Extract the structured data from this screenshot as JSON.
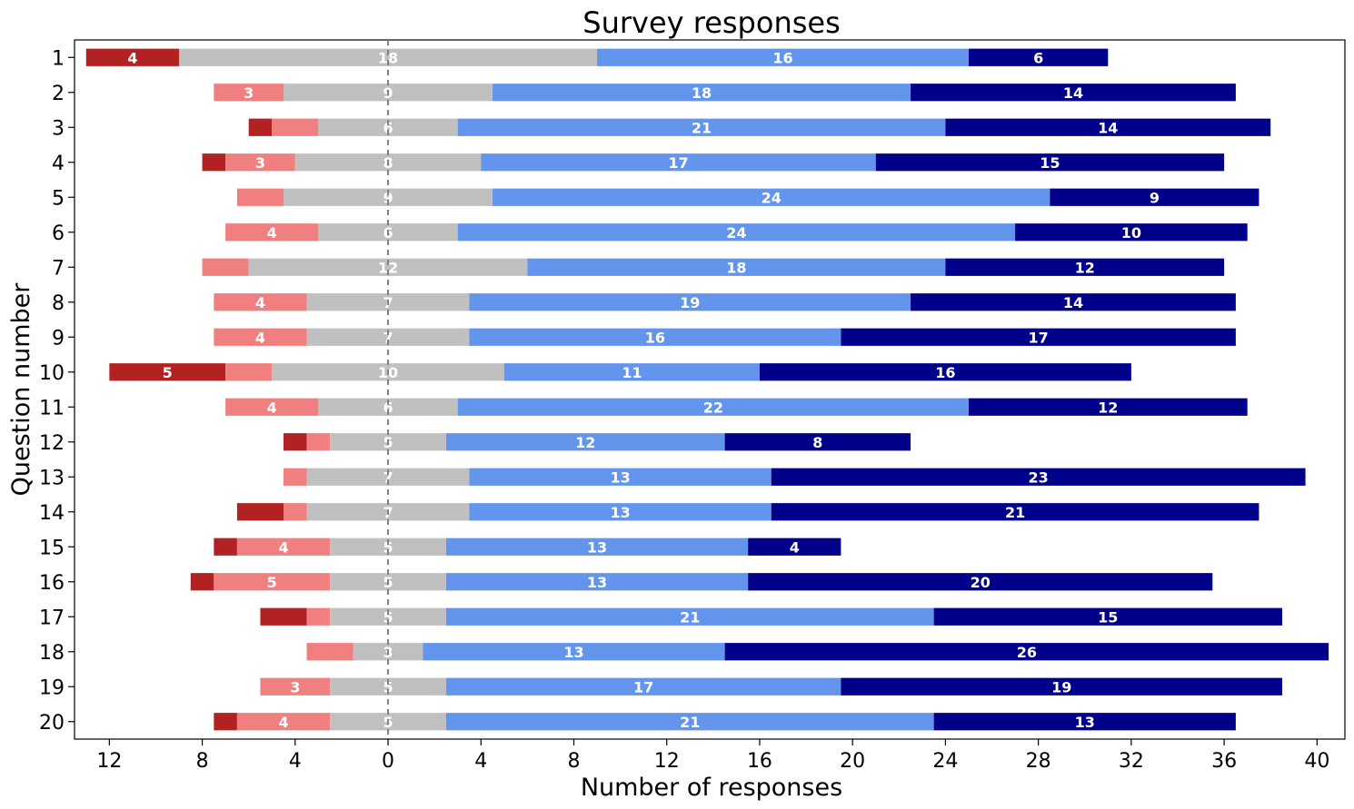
{
  "chart_data": {
    "type": "bar",
    "orientation": "horizontal",
    "layout": "diverging-stacked",
    "title": "Survey responses",
    "xlabel": "Number of responses",
    "ylabel": "Question number",
    "categories": [
      "1",
      "2",
      "3",
      "4",
      "5",
      "6",
      "7",
      "8",
      "9",
      "10",
      "11",
      "12",
      "13",
      "14",
      "15",
      "16",
      "17",
      "18",
      "19",
      "20"
    ],
    "center_value": 0,
    "xlim": [
      -13.5,
      41.2
    ],
    "x_tick_values": [
      -12,
      -8,
      -4,
      0,
      4,
      8,
      12,
      16,
      20,
      24,
      28,
      32,
      36,
      40
    ],
    "x_tick_labels": [
      "12",
      "8",
      "4",
      "0",
      "4",
      "8",
      "12",
      "16",
      "20",
      "24",
      "28",
      "32",
      "36",
      "40"
    ],
    "label_min": 3,
    "grid": false,
    "center_line": "dashed",
    "series": [
      {
        "color": "#b22222",
        "values": [
          4,
          0,
          1,
          1,
          0,
          0,
          0,
          0,
          0,
          5,
          0,
          1,
          0,
          2,
          1,
          1,
          2,
          0,
          0,
          1
        ]
      },
      {
        "color": "#f08080",
        "values": [
          0,
          3,
          2,
          3,
          2,
          4,
          2,
          4,
          4,
          2,
          4,
          1,
          1,
          1,
          4,
          5,
          1,
          2,
          3,
          4
        ]
      },
      {
        "color": "#c0c0c0",
        "values": [
          18,
          9,
          6,
          8,
          9,
          6,
          12,
          7,
          7,
          10,
          6,
          5,
          7,
          7,
          5,
          5,
          5,
          3,
          5,
          5
        ]
      },
      {
        "color": "#6495ed",
        "values": [
          16,
          18,
          21,
          17,
          24,
          24,
          18,
          19,
          16,
          11,
          22,
          12,
          13,
          13,
          13,
          13,
          21,
          13,
          17,
          21
        ]
      },
      {
        "color": "#00008b",
        "values": [
          6,
          14,
          14,
          15,
          9,
          10,
          12,
          14,
          17,
          16,
          12,
          8,
          23,
          21,
          4,
          20,
          15,
          26,
          19,
          13
        ]
      }
    ]
  }
}
